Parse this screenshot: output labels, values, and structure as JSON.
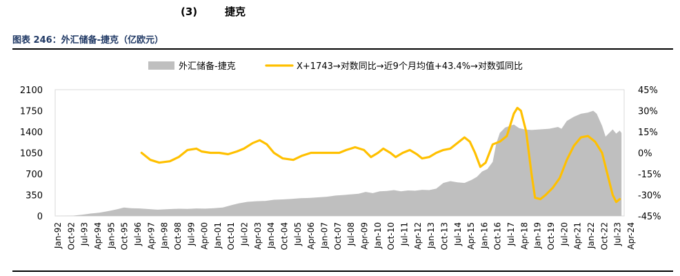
{
  "page": {
    "section_number": "(3)",
    "section_title": "捷克",
    "figure_caption": "图表 246：外汇储备-捷克（亿欧元）"
  },
  "chart_data": {
    "type": "area+line",
    "title": "",
    "legend_position": "top",
    "grid": false,
    "series": [
      {
        "name": "外汇储备-捷克",
        "kind": "area",
        "axis": "left",
        "color": "#bfbfbf",
        "points": [
          [
            1992.0,
            0
          ],
          [
            1993.0,
            5
          ],
          [
            1993.5,
            20
          ],
          [
            1994.0,
            40
          ],
          [
            1994.5,
            55
          ],
          [
            1995.0,
            80
          ],
          [
            1995.5,
            110
          ],
          [
            1995.9,
            140
          ],
          [
            1996.3,
            130
          ],
          [
            1996.8,
            125
          ],
          [
            1997.3,
            115
          ],
          [
            1997.8,
            105
          ],
          [
            1998.5,
            115
          ],
          [
            1999.0,
            120
          ],
          [
            1999.5,
            118
          ],
          [
            2000.0,
            125
          ],
          [
            2000.5,
            122
          ],
          [
            2001.0,
            128
          ],
          [
            2001.5,
            140
          ],
          [
            2002.0,
            180
          ],
          [
            2002.4,
            210
          ],
          [
            2002.9,
            235
          ],
          [
            2003.4,
            245
          ],
          [
            2003.9,
            250
          ],
          [
            2004.4,
            270
          ],
          [
            2004.9,
            275
          ],
          [
            2005.4,
            285
          ],
          [
            2005.9,
            295
          ],
          [
            2006.4,
            300
          ],
          [
            2006.9,
            310
          ],
          [
            2007.4,
            320
          ],
          [
            2007.9,
            340
          ],
          [
            2008.4,
            350
          ],
          [
            2008.8,
            360
          ],
          [
            2009.2,
            370
          ],
          [
            2009.6,
            400
          ],
          [
            2010.0,
            380
          ],
          [
            2010.4,
            410
          ],
          [
            2010.8,
            415
          ],
          [
            2011.2,
            430
          ],
          [
            2011.6,
            410
          ],
          [
            2012.0,
            425
          ],
          [
            2012.4,
            420
          ],
          [
            2012.8,
            435
          ],
          [
            2013.2,
            430
          ],
          [
            2013.6,
            455
          ],
          [
            2014.0,
            550
          ],
          [
            2014.4,
            580
          ],
          [
            2014.8,
            560
          ],
          [
            2015.2,
            550
          ],
          [
            2015.6,
            600
          ],
          [
            2015.9,
            650
          ],
          [
            2016.2,
            740
          ],
          [
            2016.5,
            780
          ],
          [
            2016.8,
            900
          ],
          [
            2017.0,
            1200
          ],
          [
            2017.2,
            1380
          ],
          [
            2017.5,
            1470
          ],
          [
            2017.8,
            1500
          ],
          [
            2018.0,
            1520
          ],
          [
            2018.3,
            1460
          ],
          [
            2018.6,
            1440
          ],
          [
            2019.0,
            1430
          ],
          [
            2019.5,
            1440
          ],
          [
            2020.0,
            1450
          ],
          [
            2020.5,
            1480
          ],
          [
            2020.7,
            1450
          ],
          [
            2021.0,
            1580
          ],
          [
            2021.4,
            1650
          ],
          [
            2021.8,
            1700
          ],
          [
            2022.2,
            1720
          ],
          [
            2022.5,
            1750
          ],
          [
            2022.7,
            1700
          ],
          [
            2023.0,
            1500
          ],
          [
            2023.2,
            1320
          ],
          [
            2023.4,
            1380
          ],
          [
            2023.6,
            1440
          ],
          [
            2023.8,
            1370
          ],
          [
            2024.0,
            1420
          ],
          [
            2024.1,
            1380
          ]
        ]
      },
      {
        "name": "X+1743→对数同比→近9个月均值+43.4%→对数弧同比",
        "kind": "line",
        "axis": "right",
        "color": "#ffc000",
        "points": [
          [
            1996.9,
            0
          ],
          [
            1997.4,
            -5
          ],
          [
            1997.9,
            -7
          ],
          [
            1998.5,
            -6
          ],
          [
            1999.0,
            -3
          ],
          [
            1999.5,
            2
          ],
          [
            2000.0,
            3
          ],
          [
            2000.3,
            1
          ],
          [
            2000.8,
            0
          ],
          [
            2001.3,
            0
          ],
          [
            2001.8,
            -1
          ],
          [
            2002.3,
            1
          ],
          [
            2002.7,
            3
          ],
          [
            2003.2,
            7
          ],
          [
            2003.6,
            9
          ],
          [
            2004.0,
            6
          ],
          [
            2004.4,
            0
          ],
          [
            2004.9,
            -4
          ],
          [
            2005.5,
            -5
          ],
          [
            2006.0,
            -2
          ],
          [
            2006.5,
            0
          ],
          [
            2007.0,
            0
          ],
          [
            2007.5,
            0
          ],
          [
            2008.1,
            0
          ],
          [
            2008.5,
            2
          ],
          [
            2009.0,
            4
          ],
          [
            2009.5,
            2
          ],
          [
            2009.9,
            -3
          ],
          [
            2010.3,
            0
          ],
          [
            2010.6,
            3
          ],
          [
            2011.0,
            0
          ],
          [
            2011.3,
            -3
          ],
          [
            2011.7,
            0
          ],
          [
            2012.1,
            2
          ],
          [
            2012.5,
            -1
          ],
          [
            2012.8,
            -4
          ],
          [
            2013.2,
            -3
          ],
          [
            2013.6,
            0
          ],
          [
            2014.0,
            2
          ],
          [
            2014.4,
            3
          ],
          [
            2014.8,
            7
          ],
          [
            2015.2,
            11
          ],
          [
            2015.5,
            8
          ],
          [
            2015.8,
            0
          ],
          [
            2016.1,
            -10
          ],
          [
            2016.4,
            -7
          ],
          [
            2016.8,
            6
          ],
          [
            2017.2,
            8
          ],
          [
            2017.6,
            12
          ],
          [
            2018.0,
            28
          ],
          [
            2018.2,
            32
          ],
          [
            2018.4,
            30
          ],
          [
            2018.7,
            15
          ],
          [
            2019.0,
            -15
          ],
          [
            2019.2,
            -32
          ],
          [
            2019.5,
            -33
          ],
          [
            2019.8,
            -30
          ],
          [
            2020.2,
            -25
          ],
          [
            2020.6,
            -18
          ],
          [
            2021.0,
            -5
          ],
          [
            2021.4,
            5
          ],
          [
            2021.8,
            11
          ],
          [
            2022.2,
            12
          ],
          [
            2022.6,
            8
          ],
          [
            2023.0,
            0
          ],
          [
            2023.3,
            -15
          ],
          [
            2023.6,
            -30
          ],
          [
            2023.8,
            -35
          ],
          [
            2024.0,
            -33
          ]
        ]
      }
    ],
    "y_left": {
      "min": 0,
      "max": 2100,
      "ticks": [
        "0",
        "350",
        "700",
        "1050",
        "1400",
        "1750",
        "2100"
      ]
    },
    "y_right": {
      "min": -45,
      "max": 45,
      "ticks": [
        "-45%",
        "-30%",
        "-15%",
        "0%",
        "15%",
        "30%",
        "45%"
      ]
    },
    "x_axis": {
      "min": 1992.0,
      "max": 2024.25,
      "ticks": [
        "Jan-92",
        "Oct-92",
        "Jul-93",
        "Apr-94",
        "Jan-95",
        "Oct-95",
        "Jul-96",
        "Apr-97",
        "Jan-98",
        "Oct-98",
        "Jul-99",
        "Apr-00",
        "Jan-01",
        "Oct-01",
        "Jul-02",
        "Apr-03",
        "Jan-04",
        "Oct-04",
        "Jul-05",
        "Apr-06",
        "Jan-07",
        "Oct-07",
        "Jul-08",
        "Apr-09",
        "Jan-10",
        "Oct-10",
        "Jul-11",
        "Apr-12",
        "Jan-13",
        "Oct-13",
        "Jul-14",
        "Apr-15",
        "Jan-16",
        "Oct-16",
        "Jul-17",
        "Apr-18",
        "Jan-19",
        "Oct-19",
        "Jul-20",
        "Apr-21",
        "Jan-22",
        "Oct-22",
        "Jul-23",
        "Apr-24"
      ]
    }
  }
}
